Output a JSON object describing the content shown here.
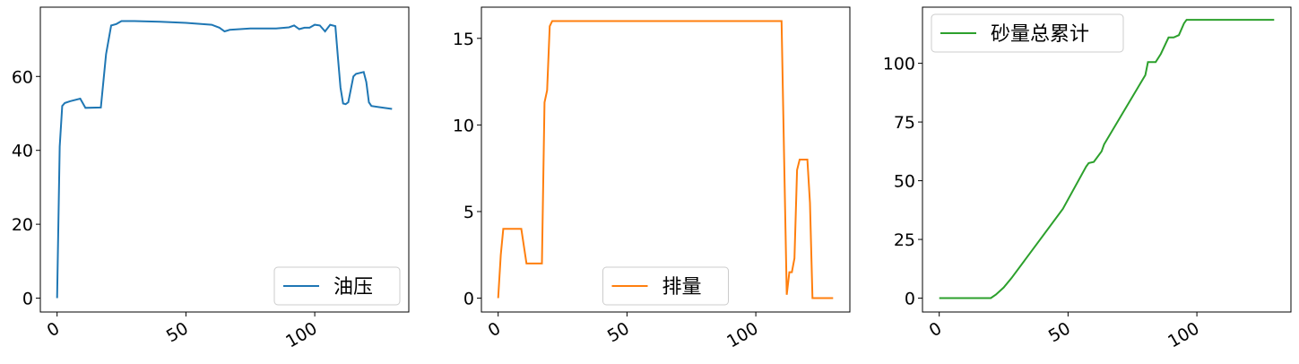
{
  "chart_data": [
    {
      "type": "line",
      "legend": "lower right",
      "x": [
        0,
        1,
        2,
        3,
        5,
        9,
        11,
        17,
        19,
        21,
        23,
        25,
        30,
        40,
        50,
        60,
        63,
        65,
        67,
        75,
        85,
        90,
        92,
        94,
        96,
        98,
        100,
        102,
        104,
        106,
        108,
        109,
        110,
        111,
        112,
        113,
        115,
        116,
        119,
        120,
        121,
        122,
        125,
        130
      ],
      "series": [
        {
          "name": "油压",
          "color": "#1f77b4",
          "values": [
            0,
            41,
            52,
            52.8,
            53.3,
            54,
            51.5,
            51.6,
            66,
            73.8,
            74.2,
            75,
            75,
            74.8,
            74.5,
            74,
            73.2,
            72.2,
            72.6,
            73,
            73,
            73.3,
            73.8,
            72.8,
            73.2,
            73.2,
            74,
            73.8,
            72.2,
            74,
            73.6,
            65,
            57,
            52.7,
            52.5,
            53,
            60,
            60.7,
            61.2,
            58.5,
            53,
            52,
            51.7,
            51.2
          ]
        }
      ],
      "xlim": [
        -6.5,
        136.5
      ],
      "ylim": [
        -3.75,
        78.75
      ],
      "xticks": [
        0,
        50,
        100
      ],
      "yticks": [
        0,
        20,
        40,
        60
      ]
    },
    {
      "type": "line",
      "legend": "lower center",
      "x": [
        0,
        1,
        2,
        9,
        11,
        17,
        18,
        19,
        20,
        21,
        110,
        111,
        112,
        113,
        114,
        115,
        116,
        117,
        120,
        121,
        122,
        130
      ],
      "series": [
        {
          "name": "排量",
          "color": "#ff7f0e",
          "values": [
            0,
            2.5,
            4,
            4,
            2,
            2,
            11.3,
            12,
            15.7,
            16,
            16,
            8,
            0.2,
            1.5,
            1.5,
            2.3,
            7.4,
            8,
            8,
            5.5,
            0,
            0
          ]
        }
      ],
      "xlim": [
        -6.5,
        136.5
      ],
      "ylim": [
        -0.8,
        16.8
      ],
      "xticks": [
        0,
        50,
        100
      ],
      "yticks": [
        0,
        5,
        10,
        15
      ]
    },
    {
      "type": "line",
      "legend": "upper left",
      "x": [
        0,
        20,
        22,
        25,
        28,
        48,
        57,
        58,
        60,
        63,
        64,
        80,
        81,
        84,
        86,
        89,
        91,
        93,
        95,
        96,
        130
      ],
      "series": [
        {
          "name": "砂量总累计",
          "color": "#2ca02c",
          "values": [
            0,
            0,
            1.5,
            4.5,
            8.5,
            38,
            56,
            57.5,
            58,
            62.5,
            65.5,
            95,
            100.5,
            100.5,
            104,
            111,
            111,
            112,
            117,
            118.5,
            118.5
          ]
        }
      ],
      "xlim": [
        -6.5,
        136.5
      ],
      "ylim": [
        -5.9,
        123.9
      ],
      "xticks": [
        0,
        50,
        100
      ],
      "yticks": [
        0,
        25,
        50,
        75,
        100
      ]
    }
  ]
}
